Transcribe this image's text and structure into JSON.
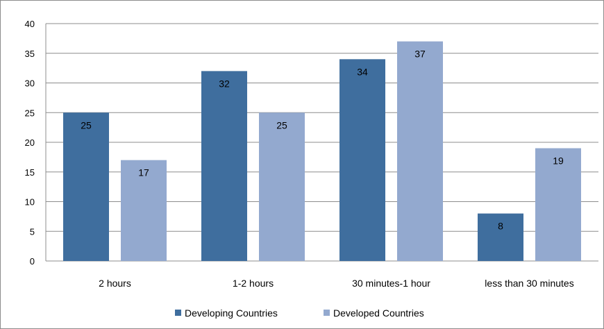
{
  "chart_data": {
    "type": "bar",
    "categories": [
      "2 hours",
      "1-2 hours",
      "30 minutes-1 hour",
      "less than 30 minutes"
    ],
    "series": [
      {
        "name": "Developing Countries",
        "values": [
          25,
          32,
          34,
          8
        ],
        "color": "#3f6e9e"
      },
      {
        "name": "Developed Countries",
        "values": [
          17,
          25,
          37,
          19
        ],
        "color": "#93a9cf"
      }
    ],
    "ylim": [
      0,
      40
    ],
    "yticks": [
      0,
      5,
      10,
      15,
      20,
      25,
      30,
      35,
      40
    ],
    "grid": true,
    "legend_position": "bottom",
    "title": "",
    "xlabel": "",
    "ylabel": ""
  }
}
